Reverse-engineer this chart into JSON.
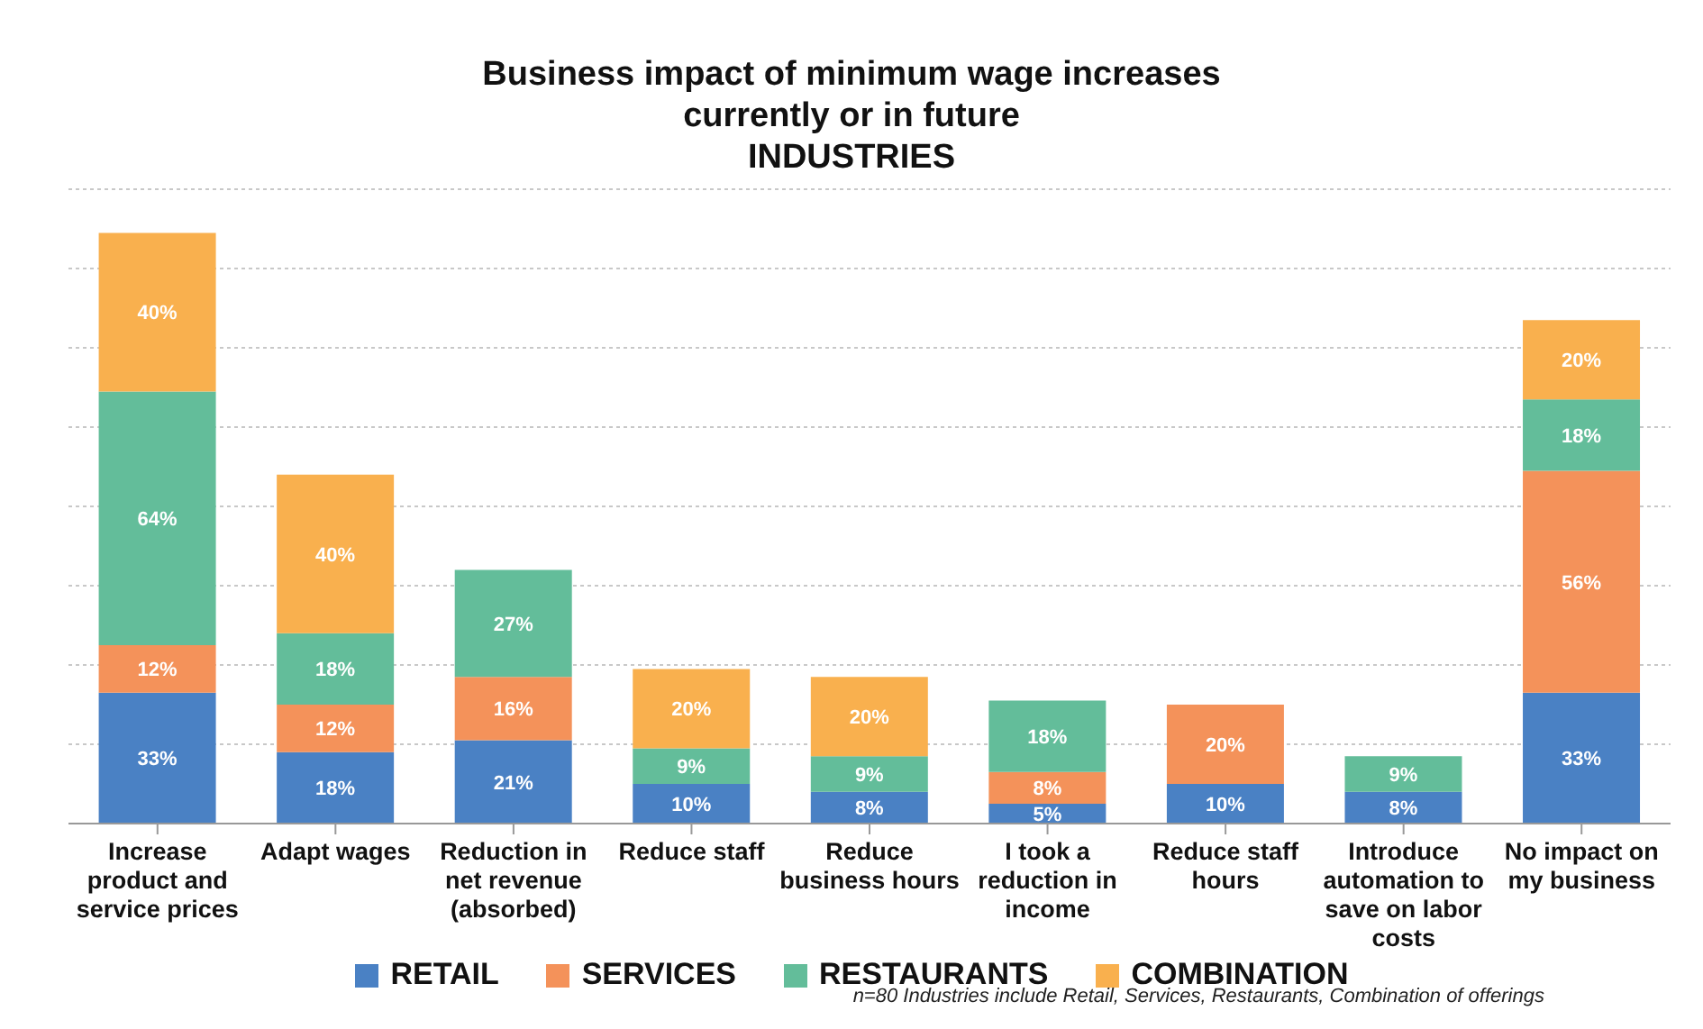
{
  "chart_data": {
    "type": "bar",
    "title": "Business impact of minimum wage increases currently or in future",
    "subtitle": "INDUSTRIES",
    "categories": [
      "Increase product and service prices",
      "Adapt wages",
      "Reduction in net revenue (absorbed)",
      "Reduce staff",
      "Reduce business hours",
      "I took a reduction in income",
      "Reduce staff hours",
      "Introduce automation to save on labor costs",
      "No impact on my business"
    ],
    "stacked": true,
    "series": [
      {
        "name": "RETAIL",
        "color": "#4a81c4",
        "values": [
          33,
          18,
          21,
          10,
          8,
          5,
          10,
          8,
          33
        ],
        "value_labels": [
          "33%",
          "18%",
          "21%",
          "10%",
          "8%",
          "5%",
          "10%",
          "8%",
          "33%"
        ]
      },
      {
        "name": "SERVICES",
        "color": "#f4925a",
        "values": [
          12,
          12,
          16,
          null,
          null,
          8,
          20,
          null,
          56
        ],
        "value_labels": [
          "12%",
          "12%",
          "16%",
          null,
          null,
          "8%",
          "20%",
          null,
          "56%"
        ]
      },
      {
        "name": "RESTAURANTS",
        "color": "#63bd9a",
        "values": [
          64,
          18,
          27,
          9,
          9,
          18,
          null,
          9,
          18
        ],
        "value_labels": [
          "64%",
          "18%",
          "27%",
          "9%",
          "9%",
          "18%",
          null,
          "9%",
          "18%"
        ]
      },
      {
        "name": "COMBINATION",
        "color": "#f9b04e",
        "values": [
          40,
          40,
          null,
          20,
          20,
          null,
          null,
          null,
          20
        ],
        "value_labels": [
          "40%",
          "40%",
          null,
          "20%",
          "20%",
          null,
          null,
          null,
          "20%"
        ]
      }
    ],
    "tick_labels": "x",
    "grid": "y",
    "legend": "bottom",
    "annotations": [
      "n=80 Industries include Retail, Services, Restaurants, Combination of offerings"
    ]
  }
}
